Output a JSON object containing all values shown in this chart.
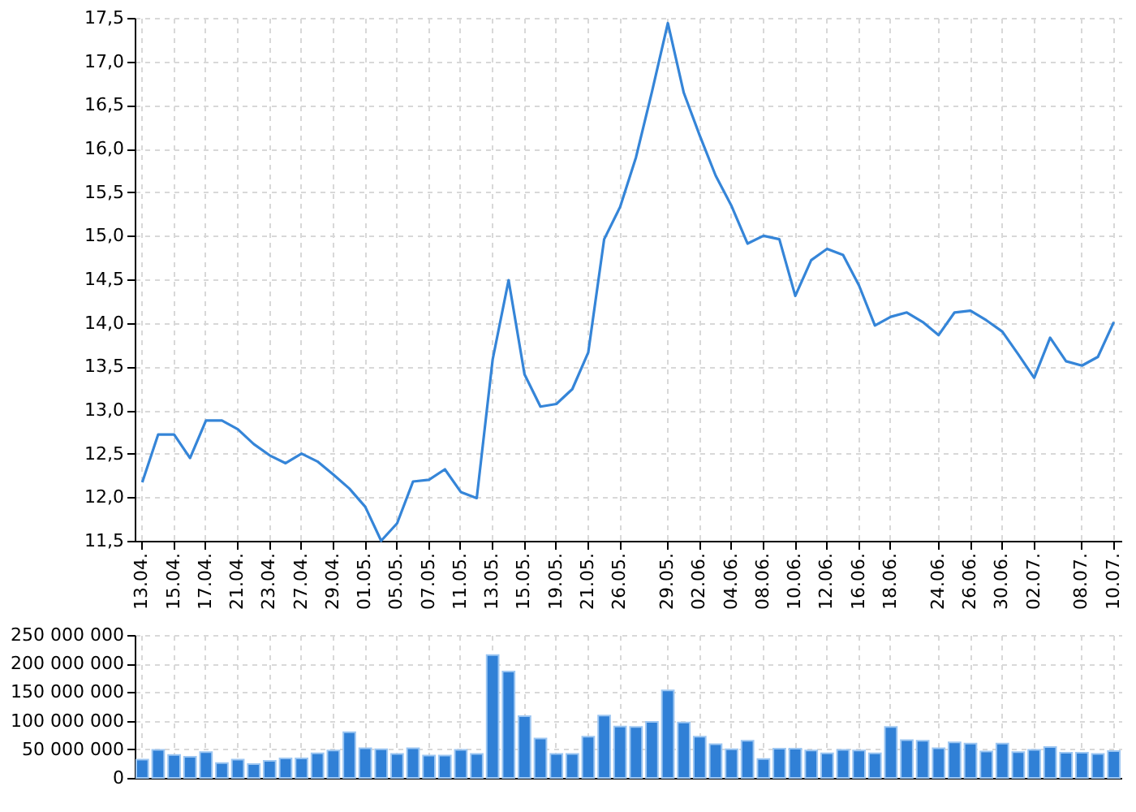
{
  "chart_data": [
    {
      "type": "line",
      "color": "#3585d8",
      "line_style": "solid",
      "grid": true,
      "categories": [
        "13.04.",
        null,
        "15.04.",
        null,
        "17.04.",
        null,
        "21.04.",
        null,
        "23.04.",
        null,
        "27.04.",
        null,
        "29.04.",
        null,
        "01.05.",
        null,
        "05.05.",
        null,
        "07.05.",
        null,
        "11.05.",
        null,
        "13.05.",
        null,
        "15.05.",
        null,
        "19.05.",
        null,
        "21.05.",
        null,
        "26.05.",
        null,
        null,
        "29.05.",
        null,
        "02.06.",
        null,
        "04.06.",
        null,
        "08.06.",
        null,
        "10.06.",
        null,
        "12.06.",
        null,
        "16.06.",
        null,
        "18.06.",
        null,
        null,
        "24.06.",
        null,
        "26.06.",
        null,
        "30.06.",
        null,
        "02.07.",
        null,
        null,
        "08.07.",
        null,
        "10.07."
      ],
      "values": [
        12.17,
        12.72,
        12.72,
        12.45,
        12.88,
        12.88,
        12.78,
        12.61,
        12.48,
        12.39,
        12.5,
        12.41,
        12.26,
        12.1,
        11.89,
        11.5,
        11.7,
        12.18,
        12.2,
        12.32,
        12.06,
        11.99,
        13.58,
        14.49,
        13.41,
        13.04,
        13.07,
        13.24,
        13.66,
        14.96,
        15.33,
        15.9,
        16.65,
        17.44,
        16.64,
        16.15,
        15.69,
        15.34,
        14.91,
        15.0,
        14.96,
        14.31,
        14.72,
        14.85,
        14.78,
        14.43,
        13.97,
        14.07,
        14.12,
        14.01,
        13.86,
        14.12,
        14.14,
        14.03,
        13.9,
        13.64,
        13.37,
        13.83,
        13.56,
        13.51,
        13.61,
        14.01
      ],
      "ylim": [
        11.5,
        17.5
      ],
      "yticks": [
        {
          "value": 11.5,
          "label": "11,5"
        },
        {
          "value": 12,
          "label": "12,0"
        },
        {
          "value": 12.5,
          "label": "12,5"
        },
        {
          "value": 13,
          "label": "13,0"
        },
        {
          "value": 13.5,
          "label": "13,5"
        },
        {
          "value": 14,
          "label": "14,0"
        },
        {
          "value": 14.5,
          "label": "14,5"
        },
        {
          "value": 15,
          "label": "15,0"
        },
        {
          "value": 15.5,
          "label": "15,5"
        },
        {
          "value": 16,
          "label": "16,0"
        },
        {
          "value": 16.5,
          "label": "16,5"
        },
        {
          "value": 17,
          "label": "17,0"
        },
        {
          "value": 17.5,
          "label": "17,5"
        }
      ]
    },
    {
      "type": "bar",
      "color": "#3080d6",
      "grid": true,
      "tick_labels": "y",
      "categories": [
        "13.04.",
        null,
        "15.04.",
        null,
        "17.04.",
        null,
        "21.04.",
        null,
        "23.04.",
        null,
        "27.04.",
        null,
        "29.04.",
        null,
        "01.05.",
        null,
        "05.05.",
        null,
        "07.05.",
        null,
        "11.05.",
        null,
        "13.05.",
        null,
        "15.05.",
        null,
        "19.05.",
        null,
        "21.05.",
        null,
        "26.05.",
        null,
        null,
        "29.05.",
        null,
        "02.06.",
        null,
        "04.06.",
        null,
        "08.06.",
        null,
        "10.06.",
        null,
        "12.06.",
        null,
        "16.06.",
        null,
        "18.06.",
        null,
        null,
        "24.06.",
        null,
        "26.06.",
        null,
        "30.06.",
        null,
        "02.07.",
        null,
        null,
        "08.07.",
        null,
        "10.07."
      ],
      "values": [
        32000000,
        49000000,
        40000000,
        37000000,
        45000000,
        26000000,
        32000000,
        24000000,
        30000000,
        34000000,
        34000000,
        43000000,
        48000000,
        80000000,
        52000000,
        50000000,
        42000000,
        52000000,
        39000000,
        39000000,
        49000000,
        42000000,
        215000000,
        186000000,
        108000000,
        69000000,
        42000000,
        42000000,
        72000000,
        109000000,
        90000000,
        89000000,
        98000000,
        153000000,
        97000000,
        72000000,
        59000000,
        50000000,
        65000000,
        33000000,
        51000000,
        51000000,
        48000000,
        43000000,
        49000000,
        48000000,
        43000000,
        89000000,
        66000000,
        65000000,
        52000000,
        62000000,
        60000000,
        46000000,
        60000000,
        45000000,
        49000000,
        54000000,
        44000000,
        44000000,
        42000000,
        47000000
      ],
      "ylim": [
        0,
        250000000
      ],
      "yticks": [
        {
          "value": 0,
          "label": "0"
        },
        {
          "value": 50000000,
          "label": "50 000 000"
        },
        {
          "value": 100000000,
          "label": "100 000 000"
        },
        {
          "value": 150000000,
          "label": "150 000 000"
        },
        {
          "value": 200000000,
          "label": "200 000 000"
        },
        {
          "value": 250000000,
          "label": "250 000 000"
        }
      ]
    }
  ]
}
